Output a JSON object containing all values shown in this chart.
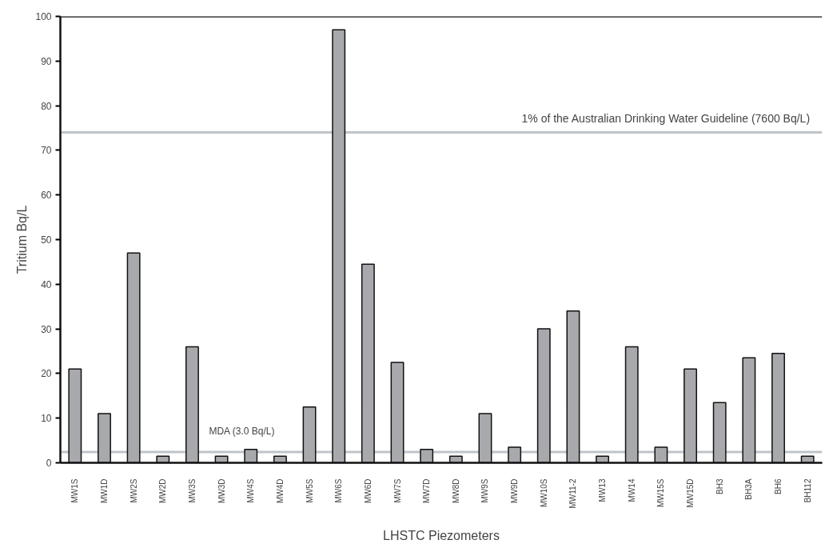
{
  "chart_data": {
    "type": "bar",
    "xlabel": "LHSTC Piezometers",
    "ylabel": "Tritium Bq/L",
    "categories": [
      "MW1S",
      "MW1D",
      "MW2S",
      "MW2D",
      "MW3S",
      "MW3D",
      "MW4S",
      "MW4D",
      "MW5S",
      "MW6S",
      "MW6D",
      "MW7S",
      "MW7D",
      "MW8D",
      "MW9S",
      "MW9D",
      "MW10S",
      "MW11-2",
      "MW13",
      "MW14",
      "MW15S",
      "MW15D",
      "BH3",
      "BH3A",
      "BH6",
      "BH112"
    ],
    "values": [
      21,
      11,
      47,
      1.5,
      26,
      1.5,
      3,
      1.5,
      12.5,
      97,
      44.5,
      22.5,
      3,
      1.5,
      11,
      3.5,
      30,
      34,
      1.5,
      26,
      3.5,
      21,
      13.5,
      23.5,
      24.5,
      1.5
    ],
    "color": "#a7a9ac",
    "ylim": [
      0,
      100
    ],
    "yticks": [
      0,
      10,
      20,
      30,
      40,
      50,
      60,
      70,
      80,
      90,
      100
    ],
    "ref_lines": [
      {
        "axis": "y",
        "value": 74,
        "label": "1% of the Australian Drinking Water Guideline (7600 Bq/L)",
        "color": "#c0c4c8"
      },
      {
        "axis": "y",
        "value": 2.4,
        "label": "MDA (3.0 Bq/L)",
        "color": "#c0c4c8"
      }
    ],
    "grid": false
  }
}
